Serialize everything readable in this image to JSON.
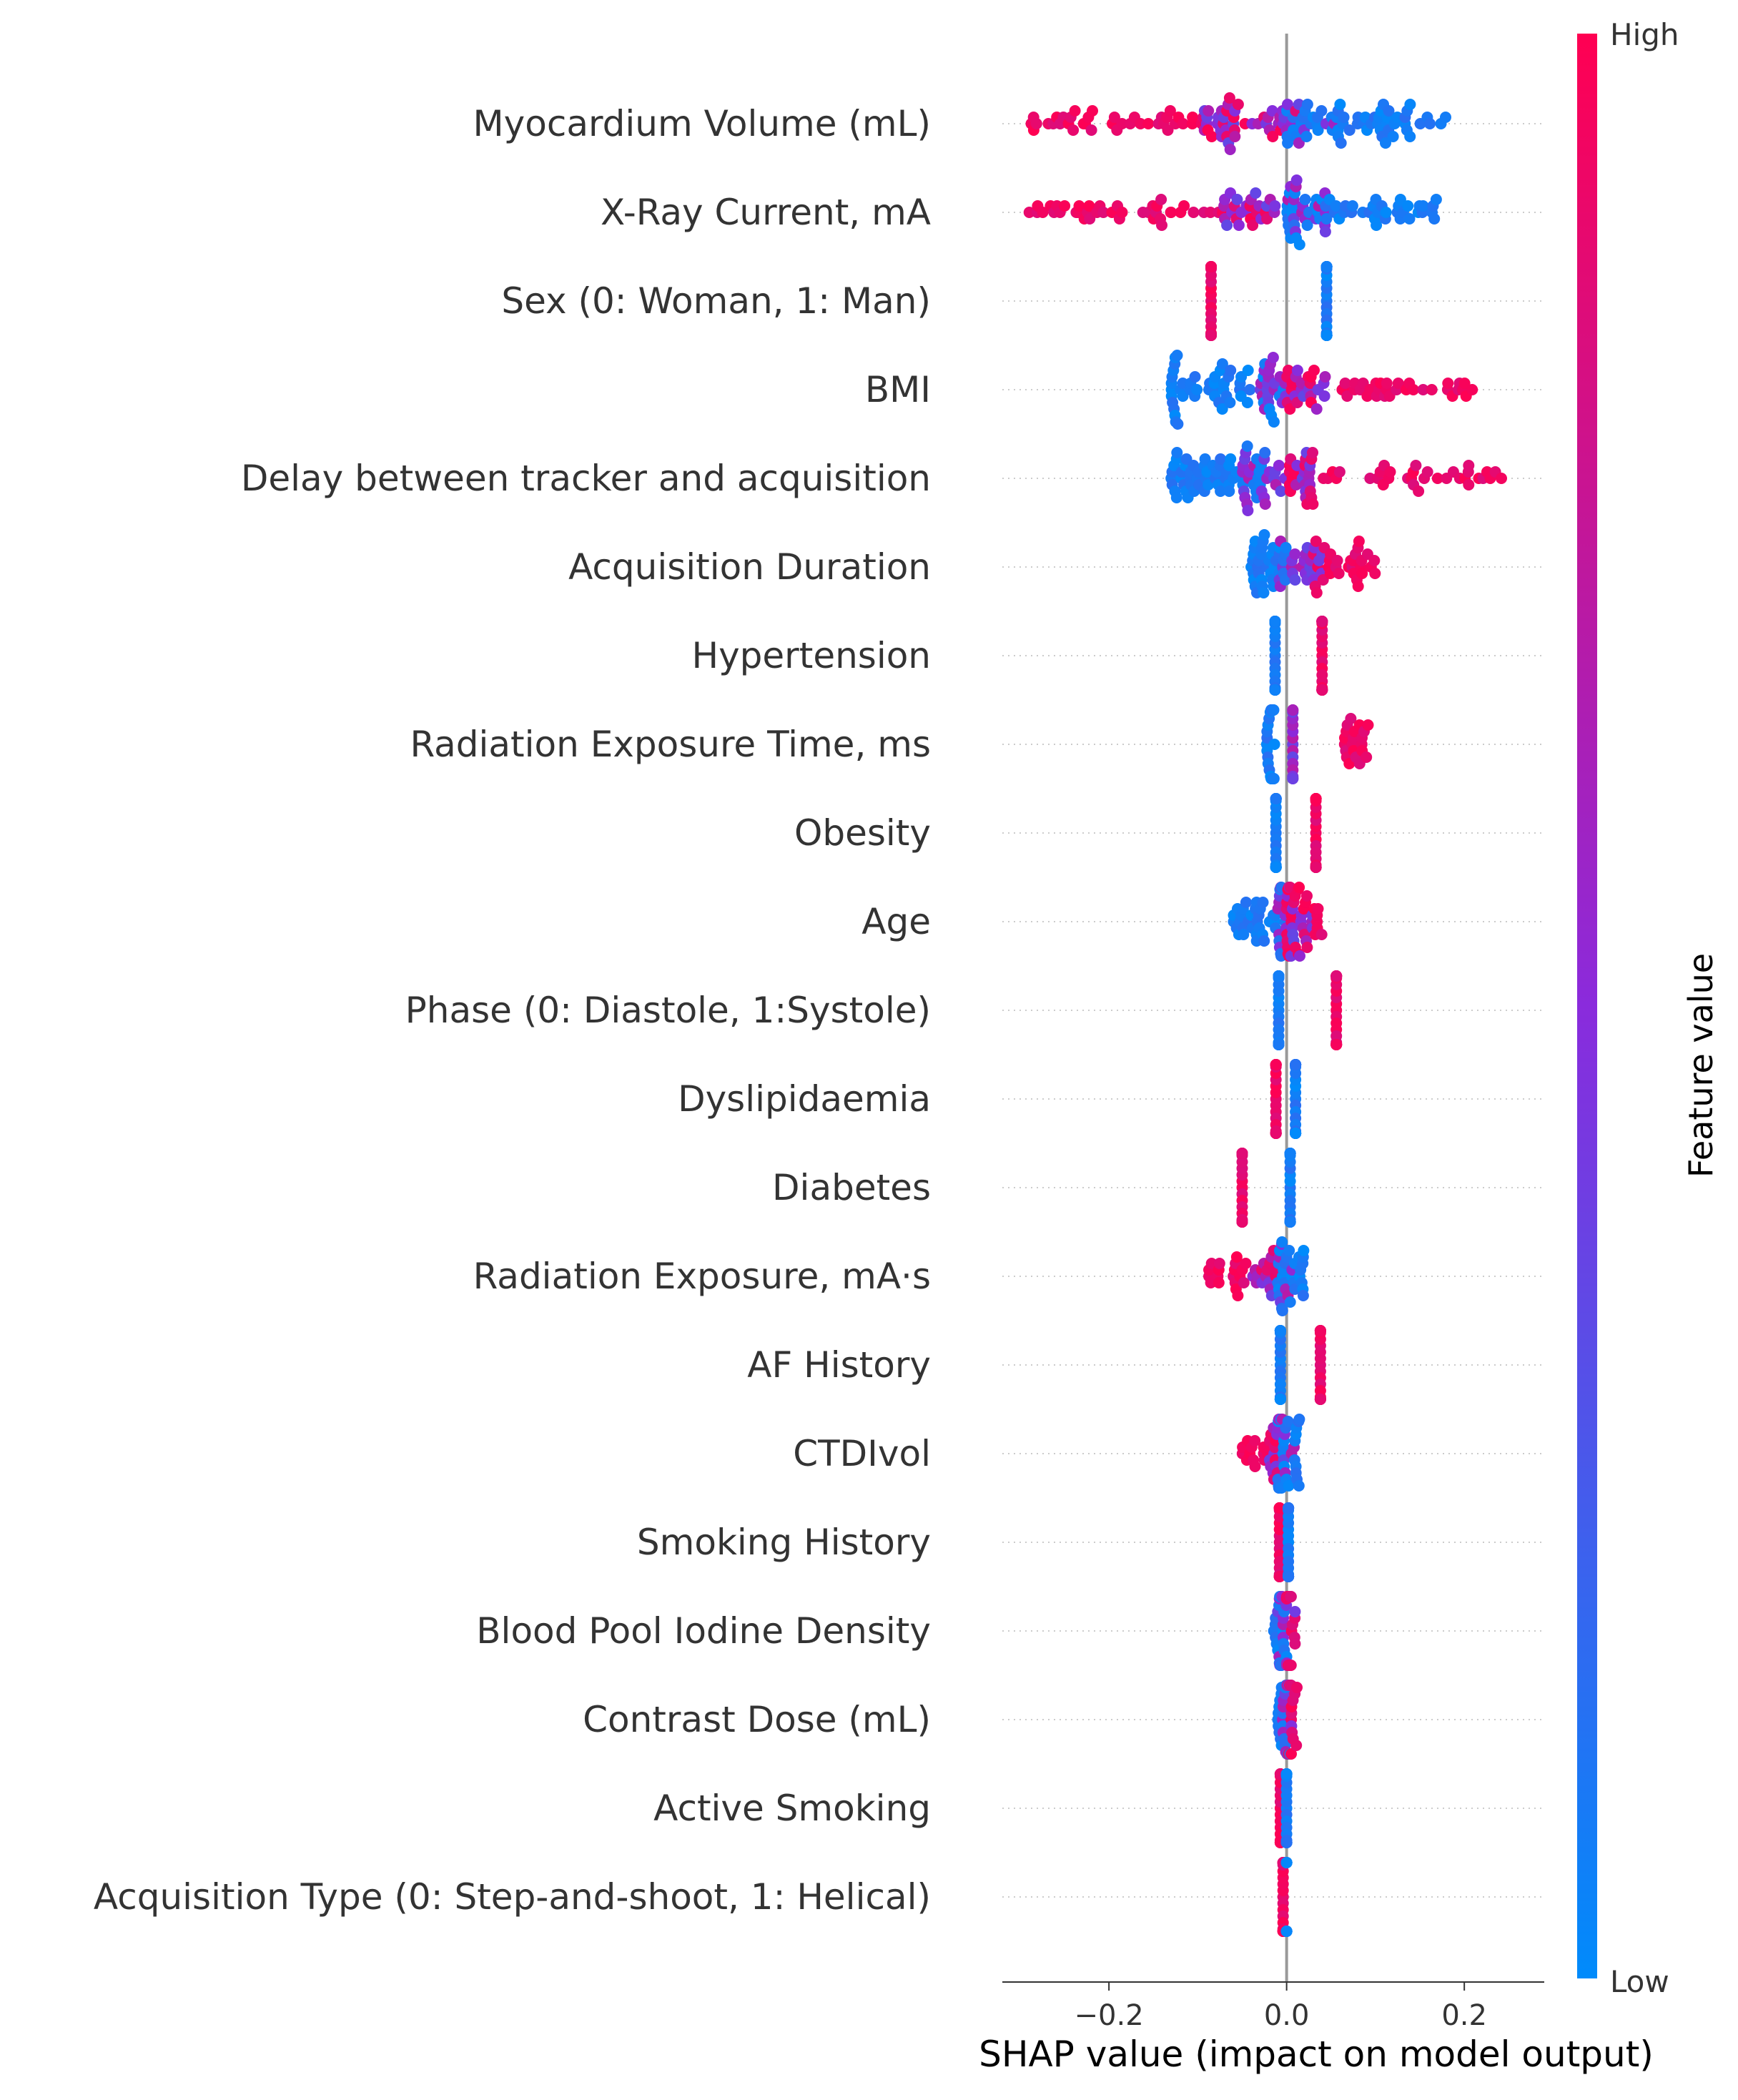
{
  "chart_data": {
    "type": "scatter",
    "subtype": "shap-beeswarm",
    "features": [
      {
        "name": "Myocardium Volume (mL)",
        "low_range": [
          0.0,
          0.18
        ],
        "high_range": [
          -0.29,
          0.02
        ],
        "mid_range": [
          -0.1,
          0.06
        ],
        "n": 150
      },
      {
        "name": "X-Ray Current, mA",
        "low_range": [
          0.0,
          0.17
        ],
        "high_range": [
          -0.29,
          0.0
        ],
        "mid_range": [
          -0.08,
          0.05
        ],
        "n": 140
      },
      {
        "name": "Sex (0: Woman, 1: Man)",
        "low_range": [
          0.045,
          0.045
        ],
        "high_range": [
          -0.085,
          -0.085
        ],
        "mid_range": [],
        "n": 70
      },
      {
        "name": "BMI",
        "low_range": [
          -0.13,
          0.0
        ],
        "high_range": [
          0.0,
          0.21
        ],
        "mid_range": [
          -0.03,
          0.05
        ],
        "n": 130
      },
      {
        "name": "Delay between tracker and acquisition",
        "low_range": [
          -0.13,
          -0.02
        ],
        "high_range": [
          0.0,
          0.26
        ],
        "mid_range": [
          -0.05,
          0.03
        ],
        "n": 140
      },
      {
        "name": "Acquisition Duration",
        "low_range": [
          -0.04,
          0.0
        ],
        "high_range": [
          0.03,
          0.1
        ],
        "mid_range": [
          -0.01,
          0.04
        ],
        "n": 90
      },
      {
        "name": "Hypertension",
        "low_range": [
          -0.013,
          -0.013
        ],
        "high_range": [
          0.04,
          0.04
        ],
        "mid_range": [],
        "n": 60
      },
      {
        "name": "Radiation Exposure Time, ms",
        "low_range": [
          -0.023,
          -0.013
        ],
        "high_range": [
          0.065,
          0.095
        ],
        "mid_range": [
          0.007,
          0.007
        ],
        "n": 60
      },
      {
        "name": "Obesity",
        "low_range": [
          -0.012,
          -0.012
        ],
        "high_range": [
          0.033,
          0.033
        ],
        "mid_range": [],
        "n": 55
      },
      {
        "name": "Age",
        "low_range": [
          -0.06,
          0.0
        ],
        "high_range": [
          0.0,
          0.04
        ],
        "mid_range": [
          -0.01,
          0.03
        ],
        "n": 90
      },
      {
        "name": "Phase (0: Diastole, 1:Systole)",
        "low_range": [
          -0.009,
          -0.009
        ],
        "high_range": [
          0.056,
          0.056
        ],
        "mid_range": [],
        "n": 50
      },
      {
        "name": "Dyslipidaemia",
        "low_range": [
          0.01,
          0.01
        ],
        "high_range": [
          -0.012,
          -0.012
        ],
        "mid_range": [],
        "n": 60
      },
      {
        "name": "Diabetes",
        "low_range": [
          0.004,
          0.004
        ],
        "high_range": [
          -0.05,
          -0.05
        ],
        "mid_range": [],
        "n": 50
      },
      {
        "name": "Radiation Exposure, mA·s",
        "low_range": [
          -0.01,
          0.02
        ],
        "high_range": [
          -0.09,
          -0.01
        ],
        "mid_range": [
          -0.04,
          0.01
        ],
        "n": 70
      },
      {
        "name": "AF History",
        "low_range": [
          -0.007,
          -0.007
        ],
        "high_range": [
          0.038,
          0.038
        ],
        "mid_range": [],
        "n": 50
      },
      {
        "name": "CTDIvol",
        "low_range": [
          -0.01,
          0.015
        ],
        "high_range": [
          -0.05,
          -0.01
        ],
        "mid_range": [
          -0.02,
          0.01
        ],
        "n": 60
      },
      {
        "name": "Smoking History",
        "low_range": [
          0.002,
          0.002
        ],
        "high_range": [
          -0.008,
          -0.008
        ],
        "mid_range": [],
        "n": 50
      },
      {
        "name": "Blood Pool Iodine Density",
        "low_range": [
          -0.015,
          0.0
        ],
        "high_range": [
          0.0,
          0.01
        ],
        "mid_range": [
          -0.01,
          0.01
        ],
        "n": 55
      },
      {
        "name": "Contrast Dose (mL)",
        "low_range": [
          -0.01,
          0.005
        ],
        "high_range": [
          0.0,
          0.012
        ],
        "mid_range": [
          -0.005,
          0.008
        ],
        "n": 50
      },
      {
        "name": "Active Smoking",
        "low_range": [
          0.0,
          0.0
        ],
        "high_range": [
          -0.007,
          -0.007
        ],
        "mid_range": [],
        "n": 45
      },
      {
        "name": "Acquisition Type (0: Step-and-shoot, 1: Helical)",
        "low_range": [
          0.0,
          0.0
        ],
        "high_range": [
          -0.004,
          -0.004
        ],
        "mid_range": [],
        "n": 45
      }
    ],
    "xlabel": "SHAP value (impact on model output)",
    "xlim": [
      -0.32,
      0.29
    ],
    "xticks": [
      -0.2,
      0.0,
      0.2
    ],
    "xtick_labels": [
      "−0.2",
      "0.0",
      "0.2"
    ],
    "colorbar": {
      "label": "Feature value",
      "high_label": "High",
      "low_label": "Low",
      "high_color": "#ff0052",
      "mid_color": "#8a2bdc",
      "low_color": "#008bfb"
    },
    "zero_line_color": "#999999",
    "grid": "dotted-row-guides",
    "legend": "colorbar-right"
  }
}
